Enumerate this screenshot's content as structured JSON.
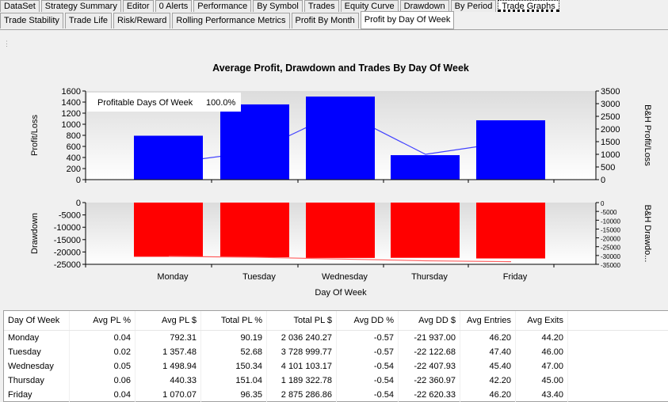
{
  "tabs_main": [
    "DataSet",
    "Strategy Summary",
    "Editor",
    "0 Alerts",
    "Performance",
    "By Symbol",
    "Trades",
    "Equity Curve",
    "Drawdown",
    "By Period",
    "Trade Graphs"
  ],
  "tabs_main_active": 10,
  "tabs_sub": [
    "Trade Stability",
    "Trade Life",
    "Risk/Reward",
    "Rolling Performance Metrics",
    "Profit By Month",
    "Profit by Day Of Week"
  ],
  "tabs_sub_active": 5,
  "chart_data": [
    {
      "type": "bar",
      "title": "Average Profit, Drawdown and Trades By Day Of Week",
      "categories": [
        "Monday",
        "Tuesday",
        "Wednesday",
        "Thursday",
        "Friday"
      ],
      "ylabel": "Profit/Loss",
      "y2label": "B&H Profit/Loss",
      "ylim": [
        0,
        1600
      ],
      "yticks": [
        0,
        200,
        400,
        600,
        800,
        1000,
        1200,
        1400,
        1600
      ],
      "y2lim": [
        0,
        3500
      ],
      "y2ticks": [
        0,
        500,
        1000,
        1500,
        2000,
        2500,
        3000,
        3500
      ],
      "series": [
        {
          "type": "bar",
          "values": [
            792.31,
            1357.48,
            1498.94,
            440.33,
            1070.07
          ],
          "color": "#0000ff"
        },
        {
          "type": "line",
          "axis": "right",
          "values": [
            650,
            1100,
            2700,
            1000,
            1500
          ],
          "color": "#4040ff"
        }
      ],
      "annotation": {
        "label": "Profitable Days Of Week",
        "value": "100.0%"
      }
    },
    {
      "type": "bar",
      "categories": [
        "Monday",
        "Tuesday",
        "Wednesday",
        "Thursday",
        "Friday"
      ],
      "xlabel": "Day Of Week",
      "ylabel": "Drawdown",
      "y2label": "B&H Drawdo...",
      "ylim": [
        -25000,
        0
      ],
      "yticks": [
        0,
        -5000,
        -10000,
        -15000,
        -20000,
        -25000
      ],
      "y2lim": [
        -35000,
        0
      ],
      "y2ticks": [
        0,
        -5000,
        -10000,
        -15000,
        -20000,
        -25000,
        -30000,
        -35000
      ],
      "series": [
        {
          "type": "bar",
          "values": [
            -21937.0,
            -22122.68,
            -22407.93,
            -22360.97,
            -22620.33
          ],
          "color": "#ff0000"
        },
        {
          "type": "line",
          "axis": "right",
          "values": [
            -30500,
            -31000,
            -32000,
            -33000,
            -33500
          ],
          "color": "#ff6060"
        }
      ]
    }
  ],
  "table": {
    "columns": [
      "Day Of Week",
      "Avg PL %",
      "Avg PL $",
      "Total PL %",
      "Total PL $",
      "Avg DD %",
      "Avg DD $",
      "Avg Entries",
      "Avg Exits"
    ],
    "rows": [
      [
        "Monday",
        "0.04",
        "792.31",
        "90.19",
        "2 036 240.27",
        "-0.57",
        "-21 937.00",
        "46.20",
        "44.20"
      ],
      [
        "Tuesday",
        "0.02",
        "1 357.48",
        "52.68",
        "3 728 999.77",
        "-0.57",
        "-22 122.68",
        "47.40",
        "46.00"
      ],
      [
        "Wednesday",
        "0.05",
        "1 498.94",
        "150.34",
        "4 101 103.17",
        "-0.54",
        "-22 407.93",
        "45.40",
        "47.00"
      ],
      [
        "Thursday",
        "0.06",
        "440.33",
        "151.04",
        "1 189 322.78",
        "-0.54",
        "-22 360.97",
        "42.20",
        "45.00"
      ],
      [
        "Friday",
        "0.04",
        "1 070.07",
        "96.35",
        "2 875 286.86",
        "-0.54",
        "-22 620.33",
        "46.20",
        "43.40"
      ]
    ]
  }
}
